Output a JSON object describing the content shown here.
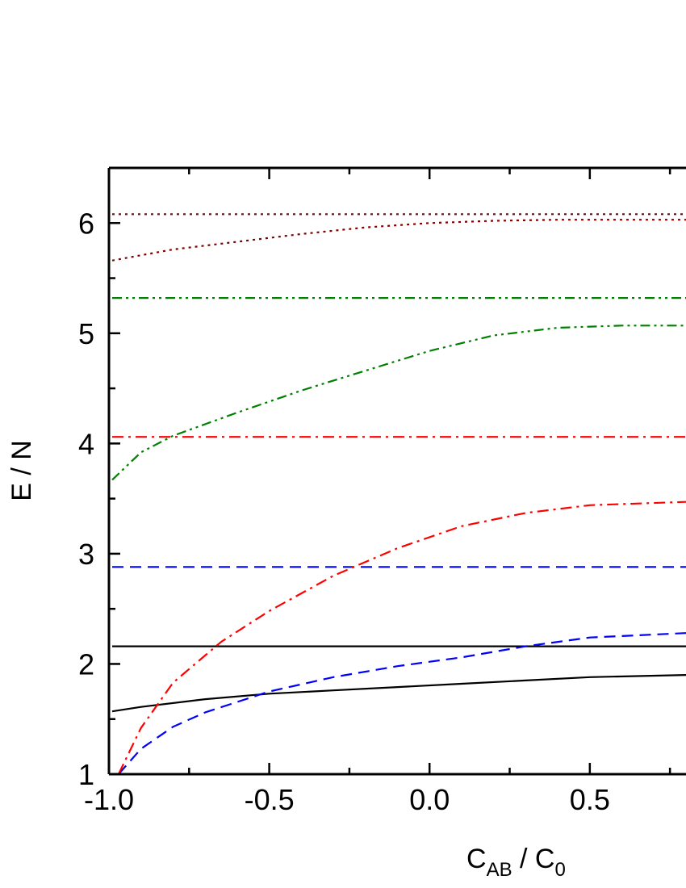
{
  "chart_data": {
    "type": "line",
    "xlabel": {
      "main": "C",
      "sub1": "AB",
      "mid": " / C",
      "sub2": "0"
    },
    "ylabel": "E / N",
    "xlim": [
      -1.0,
      0.8
    ],
    "ylim": [
      1,
      6.5
    ],
    "x_ticks": [
      {
        "value": -1.0,
        "label": "-1.0"
      },
      {
        "value": -0.5,
        "label": "-0.5"
      },
      {
        "value": 0.0,
        "label": "0.0"
      },
      {
        "value": 0.5,
        "label": "0.5"
      }
    ],
    "y_ticks": [
      {
        "value": 1,
        "label": "1"
      },
      {
        "value": 2,
        "label": "2"
      },
      {
        "value": 3,
        "label": "3"
      },
      {
        "value": 4,
        "label": "4"
      },
      {
        "value": 5,
        "label": "5"
      },
      {
        "value": 6,
        "label": "6"
      }
    ],
    "grid": false,
    "series": [
      {
        "color": "#000000",
        "style": "solid",
        "points": [
          [
            -0.99,
            2.16
          ],
          [
            0.8,
            2.16
          ]
        ]
      },
      {
        "color": "#000000",
        "style": "solid",
        "points": [
          [
            -0.99,
            1.57
          ],
          [
            -0.9,
            1.61
          ],
          [
            -0.7,
            1.68
          ],
          [
            -0.5,
            1.73
          ],
          [
            -0.3,
            1.76
          ],
          [
            -0.1,
            1.79
          ],
          [
            0.1,
            1.82
          ],
          [
            0.3,
            1.85
          ],
          [
            0.5,
            1.88
          ],
          [
            0.8,
            1.9
          ]
        ]
      },
      {
        "color": "#0000ff",
        "style": "dashed",
        "points": [
          [
            -0.99,
            2.88
          ],
          [
            0.8,
            2.88
          ]
        ]
      },
      {
        "color": "#0000ff",
        "style": "dashed",
        "points": [
          [
            -0.97,
            1.0
          ],
          [
            -0.9,
            1.23
          ],
          [
            -0.8,
            1.43
          ],
          [
            -0.7,
            1.56
          ],
          [
            -0.5,
            1.75
          ],
          [
            -0.3,
            1.88
          ],
          [
            -0.1,
            1.98
          ],
          [
            0.1,
            2.06
          ],
          [
            0.3,
            2.16
          ],
          [
            0.5,
            2.24
          ],
          [
            0.8,
            2.28
          ]
        ]
      },
      {
        "color": "#ff0000",
        "style": "dashdot",
        "points": [
          [
            -0.99,
            4.06
          ],
          [
            0.8,
            4.06
          ]
        ]
      },
      {
        "color": "#ff0000",
        "style": "dashdot",
        "points": [
          [
            -0.97,
            1.0
          ],
          [
            -0.9,
            1.42
          ],
          [
            -0.8,
            1.83
          ],
          [
            -0.65,
            2.2
          ],
          [
            -0.5,
            2.48
          ],
          [
            -0.3,
            2.8
          ],
          [
            -0.1,
            3.05
          ],
          [
            0.1,
            3.25
          ],
          [
            0.3,
            3.37
          ],
          [
            0.5,
            3.44
          ],
          [
            0.8,
            3.47
          ]
        ]
      },
      {
        "color": "#008000",
        "style": "dashdotdot",
        "points": [
          [
            -0.99,
            5.32
          ],
          [
            0.8,
            5.32
          ]
        ]
      },
      {
        "color": "#008000",
        "style": "dashdotdot",
        "points": [
          [
            -0.99,
            3.67
          ],
          [
            -0.9,
            3.92
          ],
          [
            -0.8,
            4.07
          ],
          [
            -0.6,
            4.28
          ],
          [
            -0.4,
            4.48
          ],
          [
            -0.2,
            4.66
          ],
          [
            0.0,
            4.84
          ],
          [
            0.2,
            4.98
          ],
          [
            0.4,
            5.05
          ],
          [
            0.6,
            5.07
          ],
          [
            0.8,
            5.07
          ]
        ]
      },
      {
        "color": "#800000",
        "style": "dotted",
        "points": [
          [
            -0.99,
            6.08
          ],
          [
            0.8,
            6.08
          ]
        ]
      },
      {
        "color": "#800000",
        "style": "dotted",
        "points": [
          [
            -0.99,
            5.66
          ],
          [
            -0.8,
            5.76
          ],
          [
            -0.6,
            5.83
          ],
          [
            -0.4,
            5.9
          ],
          [
            -0.2,
            5.96
          ],
          [
            0.0,
            6.0
          ],
          [
            0.2,
            6.02
          ],
          [
            0.4,
            6.03
          ],
          [
            0.8,
            6.03
          ]
        ]
      }
    ]
  }
}
